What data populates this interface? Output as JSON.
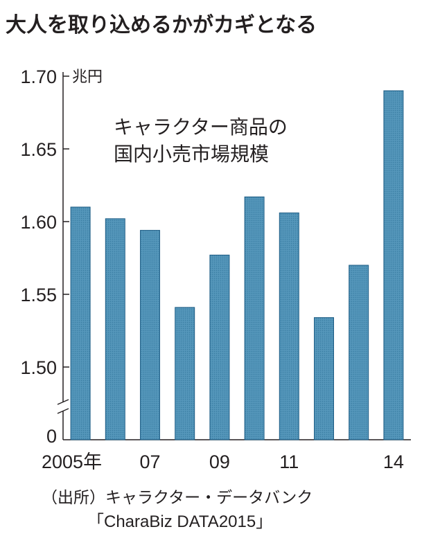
{
  "chart_data": {
    "type": "bar",
    "title": "大人を取り込めるかがカギとなる",
    "subtitle_lines": [
      "キャラクター商品の",
      "国内小売市場規模"
    ],
    "ylabel": "兆円",
    "years": [
      2005,
      2006,
      2007,
      2008,
      2009,
      2010,
      2011,
      2012,
      2013,
      2014
    ],
    "values": [
      1.61,
      1.602,
      1.594,
      1.541,
      1.577,
      1.617,
      1.606,
      1.534,
      1.57,
      1.69
    ],
    "x_tick_labels": [
      "2005年",
      "",
      "07",
      "",
      "09",
      "",
      "11",
      "",
      "",
      "14"
    ],
    "ylim": [
      1.45,
      1.7
    ],
    "y_ticks": [
      {
        "value": 1.7,
        "label": "1.70"
      },
      {
        "value": 1.65,
        "label": "1.65"
      },
      {
        "value": 1.6,
        "label": "1.60"
      },
      {
        "value": 1.55,
        "label": "1.55"
      },
      {
        "value": 1.5,
        "label": "1.50"
      }
    ],
    "y_zero_label": "0",
    "axis_break": true,
    "bar_color": "#4a8cb0",
    "bar_stroke": "#1f5e86",
    "grid": false
  },
  "source": {
    "line1": "（出所）キャラクター・データバンク",
    "line2": "「CharaBiz DATA2015」"
  }
}
